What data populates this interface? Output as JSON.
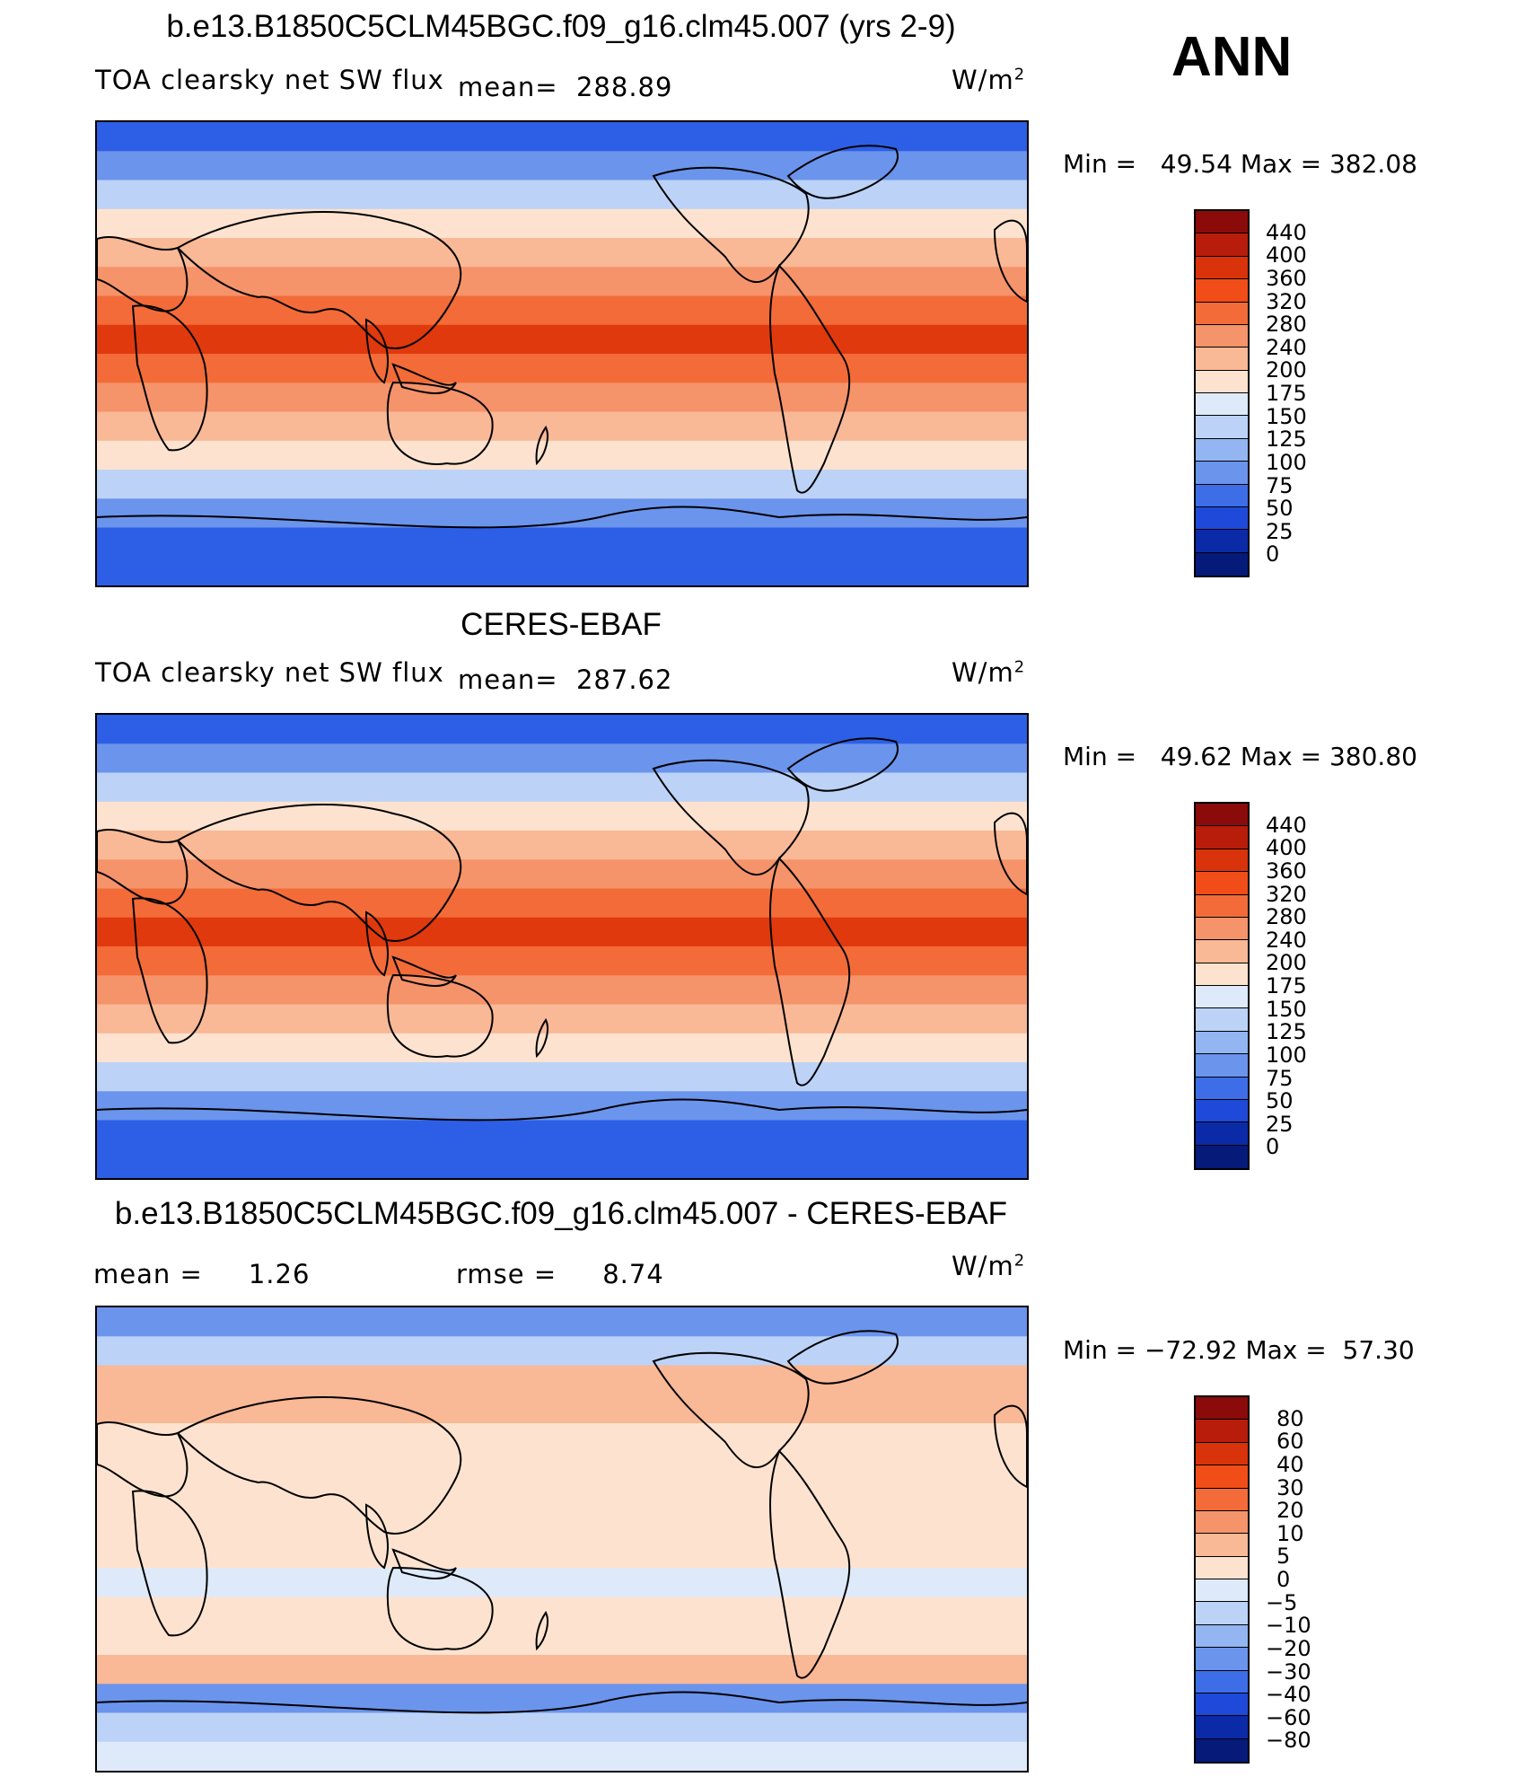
{
  "season": "ANN",
  "units": "W/m",
  "units_sup": "2",
  "panels": [
    {
      "title": "b.e13.B1850C5CLM45BGC.f09_g16.clm45.007 (yrs 2-9)",
      "left_label": "TOA clearsky net SW flux",
      "mean_label": "mean=",
      "mean_value": "288.89",
      "min_label": "Min  =",
      "min_value": "49.54",
      "max_label": "Max  =",
      "max_value": "382.08"
    },
    {
      "title": "CERES-EBAF",
      "left_label": "TOA clearsky net SW flux",
      "mean_label": "mean=",
      "mean_value": "287.62",
      "min_label": "Min  =",
      "min_value": "49.62",
      "max_label": "Max  =",
      "max_value": "380.80"
    },
    {
      "title": "b.e13.B1850C5CLM45BGC.f09_g16.clm45.007 - CERES-EBAF",
      "mean_label": "mean  =",
      "mean_value": "1.26",
      "rmse_label": "rmse  =",
      "rmse_value": "8.74",
      "min_label": "Min  =",
      "min_value": "−72.92",
      "max_label": "Max  =",
      "max_value": "57.30"
    }
  ],
  "colorbars": {
    "absolute": {
      "labels": [
        "440",
        "400",
        "360",
        "320",
        "280",
        "240",
        "200",
        "175",
        "150",
        "125",
        "100",
        "75",
        "50",
        "25",
        "0"
      ],
      "colors": [
        "#8b0a0a",
        "#b81c0a",
        "#d9330b",
        "#f04d18",
        "#f26b38",
        "#f5936a",
        "#f9b896",
        "#fde3cf",
        "#deeafa",
        "#bcd3f7",
        "#93b5f2",
        "#6b94ec",
        "#3d6ee8",
        "#1f4ad9",
        "#0b2aa8",
        "#061a7a"
      ]
    },
    "difference": {
      "labels": [
        "80",
        "60",
        "40",
        "30",
        "20",
        "10",
        "5",
        "0",
        "−5",
        "−10",
        "−20",
        "−30",
        "−40",
        "−60",
        "−80"
      ],
      "colors": [
        "#8b0a0a",
        "#b81c0a",
        "#d9330b",
        "#f04d18",
        "#f26b38",
        "#f5936a",
        "#f9b896",
        "#fde3cf",
        "#deeafa",
        "#bcd3f7",
        "#93b5f2",
        "#6b94ec",
        "#3d6ee8",
        "#1f4ad9",
        "#0b2aa8",
        "#061a7a"
      ]
    }
  },
  "bands": {
    "absolute": [
      "#2d5fe6",
      "#6b94ec",
      "#bcd3f7",
      "#fde3cf",
      "#f9b896",
      "#f5936a",
      "#f26b38",
      "#e0390e",
      "#f26b38",
      "#f5936a",
      "#f9b896",
      "#fde3cf",
      "#bcd3f7",
      "#6b94ec",
      "#2d5fe6",
      "#2d5fe6"
    ],
    "difference": [
      "#6b94ec",
      "#bcd3f7",
      "#f9b896",
      "#f9b896",
      "#fde3cf",
      "#fde3cf",
      "#fde3cf",
      "#fde3cf",
      "#fde3cf",
      "#deeafa",
      "#fde3cf",
      "#fde3cf",
      "#f9b896",
      "#6b94ec",
      "#bcd3f7",
      "#deeafa"
    ]
  }
}
